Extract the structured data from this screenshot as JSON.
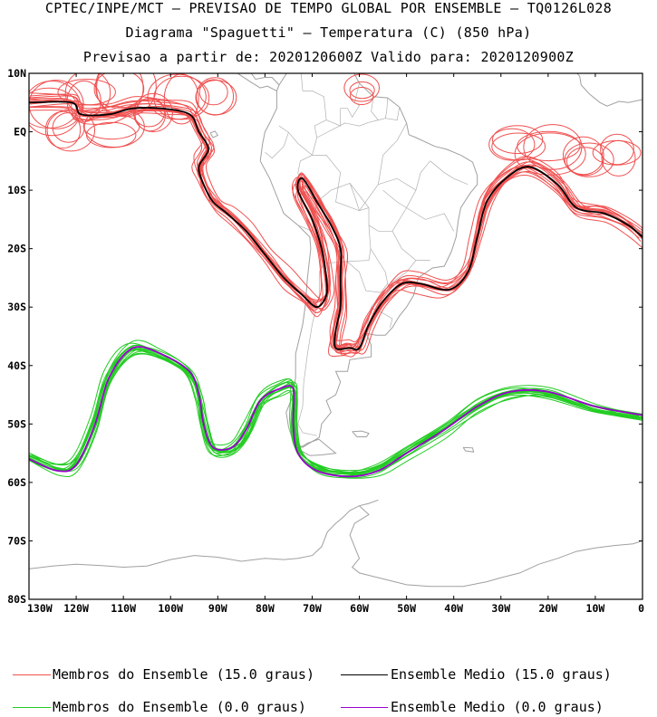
{
  "header": {
    "line1": "CPTEC/INPE/MCT – PREVISAO DE TEMPO GLOBAL POR ENSEMBLE – TQ0126L028",
    "line2": "Diagrama \"Spaguetti\" – Temperatura (C) (850 hPa)",
    "line3": "Previsao a partir de: 2020120600Z  Valido para: 2020120900Z"
  },
  "map": {
    "lat_labels": [
      "10N",
      "EQ",
      "10S",
      "20S",
      "30S",
      "40S",
      "50S",
      "60S",
      "70S",
      "80S"
    ],
    "lon_labels": [
      "130W",
      "120W",
      "110W",
      "100W",
      "90W",
      "80W",
      "70W",
      "60W",
      "50W",
      "40W",
      "30W",
      "20W",
      "10W",
      "0"
    ],
    "lat_range": [
      -80,
      10
    ],
    "lon_range": [
      -130,
      0
    ],
    "coastline_color": "#a0a0a0",
    "warm_member_color": "#f05050",
    "warm_mean_color": "#000000",
    "cold_member_color": "#22cc22",
    "cold_mean_color": "#9900cc"
  },
  "legend": {
    "warm_members": "Membros do Ensemble (15.0 graus)",
    "warm_mean": "Ensemble Medio (15.0 graus)",
    "cold_members": "Membros do Ensemble (0.0 graus)",
    "cold_mean": "Ensemble Medio (0.0 graus)"
  },
  "contours": {
    "isotherm_15": {
      "value_c": 15.0,
      "mean_path": [
        [
          -130,
          5
        ],
        [
          -121,
          5
        ],
        [
          -119,
          3
        ],
        [
          -113,
          3
        ],
        [
          -108,
          4
        ],
        [
          -102,
          4
        ],
        [
          -96,
          3
        ],
        [
          -94,
          0
        ],
        [
          -92,
          -3
        ],
        [
          -94,
          -6
        ],
        [
          -93,
          -9
        ],
        [
          -91,
          -12
        ],
        [
          -88,
          -14
        ],
        [
          -84,
          -17
        ],
        [
          -80,
          -21
        ],
        [
          -76,
          -25
        ],
        [
          -72,
          -28
        ],
        [
          -69,
          -30
        ],
        [
          -67,
          -28
        ],
        [
          -67,
          -25
        ],
        [
          -68,
          -20
        ],
        [
          -70,
          -15
        ],
        [
          -73,
          -10
        ],
        [
          -72,
          -8
        ],
        [
          -69,
          -12
        ],
        [
          -66,
          -16
        ],
        [
          -64,
          -20
        ],
        [
          -64,
          -25
        ],
        [
          -64,
          -30
        ],
        [
          -65,
          -34
        ],
        [
          -65,
          -37
        ],
        [
          -62,
          -37
        ],
        [
          -60,
          -37
        ],
        [
          -58,
          -33
        ],
        [
          -55,
          -29
        ],
        [
          -51,
          -26
        ],
        [
          -47,
          -26
        ],
        [
          -41,
          -27
        ],
        [
          -37,
          -24
        ],
        [
          -35,
          -18
        ],
        [
          -33,
          -12
        ],
        [
          -29,
          -8
        ],
        [
          -24,
          -6
        ],
        [
          -18,
          -9
        ],
        [
          -14,
          -13
        ],
        [
          -8,
          -14
        ],
        [
          -3,
          -16
        ],
        [
          0,
          -18
        ]
      ]
    },
    "isotherm_0": {
      "value_c": 0.0,
      "mean_path": [
        [
          -130,
          -56
        ],
        [
          -124,
          -58
        ],
        [
          -120,
          -57
        ],
        [
          -116,
          -50
        ],
        [
          -113,
          -42
        ],
        [
          -108,
          -37
        ],
        [
          -102,
          -38
        ],
        [
          -96,
          -41
        ],
        [
          -94,
          -45
        ],
        [
          -93,
          -50
        ],
        [
          -91,
          -54
        ],
        [
          -87,
          -54
        ],
        [
          -84,
          -51
        ],
        [
          -81,
          -46
        ],
        [
          -77,
          -44
        ],
        [
          -74,
          -44
        ],
        [
          -74,
          -50
        ],
        [
          -73,
          -55
        ],
        [
          -69,
          -58
        ],
        [
          -62,
          -59
        ],
        [
          -56,
          -58
        ],
        [
          -50,
          -55
        ],
        [
          -42,
          -51
        ],
        [
          -35,
          -47
        ],
        [
          -28,
          -44.5
        ],
        [
          -20,
          -44.5
        ],
        [
          -10,
          -47
        ],
        [
          0,
          -48.5
        ]
      ]
    }
  }
}
